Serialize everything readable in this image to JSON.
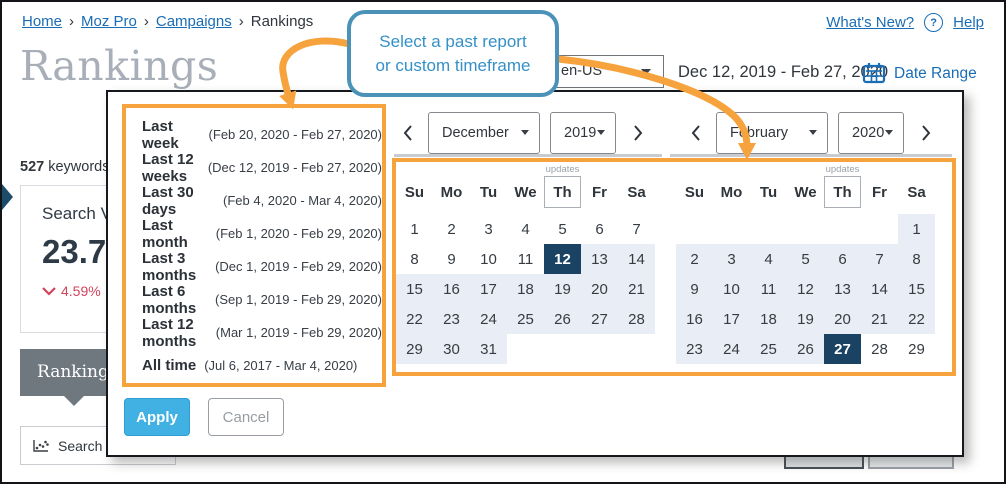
{
  "colors": {
    "accent_blue": "#1A6DB5",
    "orange": "#F6A23D",
    "selected_navy": "#1A4263",
    "range_bg": "#E9EDF5",
    "apply_blue": "#41B1E4",
    "callout_border": "#4B92B8",
    "callout_text": "#3590C8",
    "delta_red": "#D0455A"
  },
  "breadcrumb": {
    "separator": "›",
    "items": [
      {
        "label": "Home"
      },
      {
        "label": "Moz Pro"
      },
      {
        "label": "Campaigns"
      },
      {
        "label": "Rankings"
      }
    ]
  },
  "top_links": {
    "whats_new": "What's New?",
    "help": "Help",
    "help_icon": "?"
  },
  "page": {
    "title": "Rankings",
    "keyword_count": "527",
    "keyword_label": "keywords"
  },
  "metric_card": {
    "title": "Search V",
    "value": "23.7",
    "delta": "4.59%"
  },
  "background": {
    "tab_label": "Ranking",
    "chart_button_label": "Search V"
  },
  "toolbar": {
    "locale": "en-US",
    "date_range": "Dec 12, 2019 - Feb 27, 2020",
    "date_range_label": "Date Range"
  },
  "callout": {
    "line1": "Select a past report",
    "line2": "or custom timeframe"
  },
  "date_modal": {
    "presets": [
      {
        "label": "Last week",
        "range": "(Feb 20, 2020 - Feb 27, 2020)"
      },
      {
        "label": "Last 12 weeks",
        "range": "(Dec 12, 2019 - Feb 27, 2020)"
      },
      {
        "label": "Last 30 days",
        "range": "(Feb 4, 2020 - Mar 4, 2020)"
      },
      {
        "label": "Last month",
        "range": "(Feb 1, 2020 - Feb 29, 2020)"
      },
      {
        "label": "Last 3 months",
        "range": "(Dec 1, 2019 - Feb 29, 2020)"
      },
      {
        "label": "Last 6 months",
        "range": "(Sep 1, 2019 - Feb 29, 2020)"
      },
      {
        "label": "Last 12 months",
        "range": "(Mar 1, 2019 - Feb 29, 2020)"
      },
      {
        "label": "All time",
        "range": "(Jul 6, 2017 - Mar 4, 2020)"
      }
    ],
    "calendars": [
      {
        "month": "December",
        "year": "2019",
        "weekdays": [
          "Su",
          "Mo",
          "Tu",
          "We",
          "Th",
          "Fr",
          "Sa"
        ],
        "updates_label": "updates",
        "updates_weekday_index": 4,
        "weeks": [
          [
            1,
            2,
            3,
            4,
            5,
            6,
            7
          ],
          [
            8,
            9,
            10,
            11,
            12,
            13,
            14
          ],
          [
            15,
            16,
            17,
            18,
            19,
            20,
            21
          ],
          [
            22,
            23,
            24,
            25,
            26,
            27,
            28
          ],
          [
            29,
            30,
            31,
            null,
            null,
            null,
            null
          ]
        ],
        "selected_day": 12,
        "range": [
          12,
          31
        ]
      },
      {
        "month": "February",
        "year": "2020",
        "weekdays": [
          "Su",
          "Mo",
          "Tu",
          "We",
          "Th",
          "Fr",
          "Sa"
        ],
        "updates_label": "updates",
        "updates_weekday_index": 4,
        "weeks": [
          [
            null,
            null,
            null,
            null,
            null,
            null,
            1
          ],
          [
            2,
            3,
            4,
            5,
            6,
            7,
            8
          ],
          [
            9,
            10,
            11,
            12,
            13,
            14,
            15
          ],
          [
            16,
            17,
            18,
            19,
            20,
            21,
            22
          ],
          [
            23,
            24,
            25,
            26,
            27,
            28,
            29
          ]
        ],
        "selected_day": 27,
        "range": [
          1,
          27
        ]
      }
    ],
    "apply_label": "Apply",
    "cancel_label": "Cancel"
  }
}
